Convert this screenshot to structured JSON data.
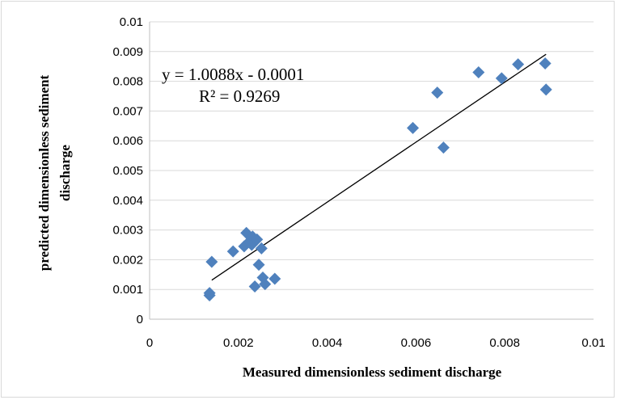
{
  "chart_data": {
    "type": "scatter",
    "title": "",
    "xlabel": "Measured dimensionless sediment discharge",
    "ylabel_lines": [
      "predicted dimensionless sediment",
      "discharge"
    ],
    "xlim": [
      0,
      0.01
    ],
    "ylim": [
      0,
      0.01
    ],
    "x_ticks": [
      "0",
      "0.002",
      "0.004",
      "0.006",
      "0.008",
      "0.01"
    ],
    "y_ticks": [
      "0",
      "0.001",
      "0.002",
      "0.003",
      "0.004",
      "0.005",
      "0.006",
      "0.007",
      "0.008",
      "0.009",
      "0.01"
    ],
    "grid": "horizontal",
    "marker_color": "#4f81bd",
    "series": [
      {
        "points": [
          [
            0.00135,
            0.0008
          ],
          [
            0.00135,
            0.00088
          ],
          [
            0.0014,
            0.00193
          ],
          [
            0.00188,
            0.00228
          ],
          [
            0.00213,
            0.00245
          ],
          [
            0.00218,
            0.0029
          ],
          [
            0.00225,
            0.00262
          ],
          [
            0.0023,
            0.0025
          ],
          [
            0.00232,
            0.00278
          ],
          [
            0.00237,
            0.0011
          ],
          [
            0.00242,
            0.00268
          ],
          [
            0.00246,
            0.00183
          ],
          [
            0.00252,
            0.00238
          ],
          [
            0.00255,
            0.0014
          ],
          [
            0.0026,
            0.00118
          ],
          [
            0.00282,
            0.00136
          ],
          [
            0.00593,
            0.00643
          ],
          [
            0.00648,
            0.00762
          ],
          [
            0.00662,
            0.00577
          ],
          [
            0.00741,
            0.0083
          ],
          [
            0.00793,
            0.0081
          ],
          [
            0.0083,
            0.00857
          ],
          [
            0.00891,
            0.0086
          ],
          [
            0.00893,
            0.00772
          ]
        ]
      }
    ],
    "trendline": {
      "slope": 1.0088,
      "intercept": -0.0001,
      "x_range": [
        0.0014,
        0.00893
      ],
      "equation": "y = 1.0088x - 0.0001",
      "r_squared": "R² = 0.9269"
    }
  }
}
